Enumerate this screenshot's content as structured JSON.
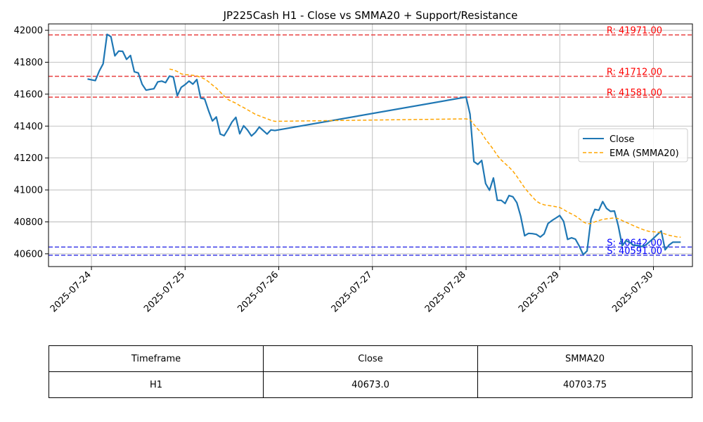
{
  "chart_data": {
    "type": "line",
    "title": "JP225Cash H1 - Close vs SMMA20 + Support/Resistance",
    "xlabel": "",
    "ylabel": "",
    "xlim": [
      "2025-07-23T13:00",
      "2025-07-30T10:00"
    ],
    "ylim": [
      40520,
      42040
    ],
    "x_ticks": [
      "2025-07-24",
      "2025-07-25",
      "2025-07-26",
      "2025-07-27",
      "2025-07-28",
      "2025-07-29",
      "2025-07-30"
    ],
    "y_ticks": [
      40600,
      40800,
      41000,
      41200,
      41400,
      41600,
      41800,
      42000
    ],
    "grid": true,
    "legend_position": "right",
    "series": [
      {
        "name": "Close",
        "color": "#1f77b4",
        "style": "solid",
        "points": [
          [
            "2025-07-23T23:00",
            41695
          ],
          [
            "2025-07-24T01:00",
            41685
          ],
          [
            "2025-07-24T02:00",
            41745
          ],
          [
            "2025-07-24T03:00",
            41790
          ],
          [
            "2025-07-24T04:00",
            41975
          ],
          [
            "2025-07-24T05:00",
            41960
          ],
          [
            "2025-07-24T06:00",
            41840
          ],
          [
            "2025-07-24T07:00",
            41870
          ],
          [
            "2025-07-24T08:00",
            41868
          ],
          [
            "2025-07-24T09:00",
            41818
          ],
          [
            "2025-07-24T10:00",
            41842
          ],
          [
            "2025-07-24T11:00",
            41740
          ],
          [
            "2025-07-24T12:00",
            41733
          ],
          [
            "2025-07-24T13:00",
            41662
          ],
          [
            "2025-07-24T14:00",
            41625
          ],
          [
            "2025-07-24T15:00",
            41630
          ],
          [
            "2025-07-24T16:00",
            41634
          ],
          [
            "2025-07-24T17:00",
            41677
          ],
          [
            "2025-07-24T18:00",
            41682
          ],
          [
            "2025-07-24T19:00",
            41672
          ],
          [
            "2025-07-24T20:00",
            41713
          ],
          [
            "2025-07-24T21:00",
            41707
          ],
          [
            "2025-07-24T22:00",
            41590
          ],
          [
            "2025-07-24T23:00",
            41643
          ],
          [
            "2025-07-25T00:00",
            41660
          ],
          [
            "2025-07-25T01:00",
            41682
          ],
          [
            "2025-07-25T02:00",
            41663
          ],
          [
            "2025-07-25T03:00",
            41692
          ],
          [
            "2025-07-25T04:00",
            41575
          ],
          [
            "2025-07-25T05:00",
            41570
          ],
          [
            "2025-07-25T06:00",
            41497
          ],
          [
            "2025-07-25T07:00",
            41432
          ],
          [
            "2025-07-25T08:00",
            41457
          ],
          [
            "2025-07-25T09:00",
            41350
          ],
          [
            "2025-07-25T10:00",
            41340
          ],
          [
            "2025-07-25T11:00",
            41380
          ],
          [
            "2025-07-25T12:00",
            41425
          ],
          [
            "2025-07-25T13:00",
            41455
          ],
          [
            "2025-07-25T14:00",
            41352
          ],
          [
            "2025-07-25T15:00",
            41402
          ],
          [
            "2025-07-25T16:00",
            41375
          ],
          [
            "2025-07-25T17:00",
            41338
          ],
          [
            "2025-07-25T18:00",
            41360
          ],
          [
            "2025-07-25T19:00",
            41394
          ],
          [
            "2025-07-25T20:00",
            41372
          ],
          [
            "2025-07-25T21:00",
            41350
          ],
          [
            "2025-07-25T22:00",
            41376
          ],
          [
            "2025-07-25T23:00",
            41372
          ],
          [
            "2025-07-28T00:00",
            41582
          ],
          [
            "2025-07-28T01:00",
            41475
          ],
          [
            "2025-07-28T02:00",
            41178
          ],
          [
            "2025-07-28T03:00",
            41160
          ],
          [
            "2025-07-28T04:00",
            41185
          ],
          [
            "2025-07-28T05:00",
            41040
          ],
          [
            "2025-07-28T06:00",
            40998
          ],
          [
            "2025-07-28T07:00",
            41075
          ],
          [
            "2025-07-28T08:00",
            40935
          ],
          [
            "2025-07-28T09:00",
            40935
          ],
          [
            "2025-07-28T10:00",
            40915
          ],
          [
            "2025-07-28T11:00",
            40965
          ],
          [
            "2025-07-28T12:00",
            40957
          ],
          [
            "2025-07-28T13:00",
            40920
          ],
          [
            "2025-07-28T14:00",
            40835
          ],
          [
            "2025-07-28T15:00",
            40713
          ],
          [
            "2025-07-28T16:00",
            40728
          ],
          [
            "2025-07-28T17:00",
            40726
          ],
          [
            "2025-07-28T18:00",
            40722
          ],
          [
            "2025-07-28T19:00",
            40705
          ],
          [
            "2025-07-28T20:00",
            40725
          ],
          [
            "2025-07-28T21:00",
            40790
          ],
          [
            "2025-07-28T22:00",
            40808
          ],
          [
            "2025-07-28T23:00",
            40824
          ],
          [
            "2025-07-29T00:00",
            40840
          ],
          [
            "2025-07-29T01:00",
            40803
          ],
          [
            "2025-07-29T02:00",
            40690
          ],
          [
            "2025-07-29T03:00",
            40700
          ],
          [
            "2025-07-29T04:00",
            40692
          ],
          [
            "2025-07-29T05:00",
            40648
          ],
          [
            "2025-07-29T06:00",
            40595
          ],
          [
            "2025-07-29T07:00",
            40618
          ],
          [
            "2025-07-29T08:00",
            40818
          ],
          [
            "2025-07-29T09:00",
            40878
          ],
          [
            "2025-07-29T10:00",
            40873
          ],
          [
            "2025-07-29T11:00",
            40927
          ],
          [
            "2025-07-29T12:00",
            40884
          ],
          [
            "2025-07-29T13:00",
            40866
          ],
          [
            "2025-07-29T14:00",
            40868
          ],
          [
            "2025-07-29T15:00",
            40775
          ],
          [
            "2025-07-29T16:00",
            40650
          ],
          [
            "2025-07-29T17:00",
            40683
          ],
          [
            "2025-07-29T18:00",
            40670
          ],
          [
            "2025-07-29T19:00",
            40652
          ],
          [
            "2025-07-29T20:00",
            40652
          ],
          [
            "2025-07-29T21:00",
            40645
          ],
          [
            "2025-07-29T22:00",
            40655
          ],
          [
            "2025-07-29T23:00",
            40675
          ],
          [
            "2025-07-30T00:00",
            40697
          ],
          [
            "2025-07-30T01:00",
            40720
          ],
          [
            "2025-07-30T02:00",
            40743
          ],
          [
            "2025-07-30T03:00",
            40625
          ],
          [
            "2025-07-30T04:00",
            40655
          ],
          [
            "2025-07-30T05:00",
            40673
          ],
          [
            "2025-07-30T06:00",
            40673
          ],
          [
            "2025-07-30T07:00",
            40673
          ]
        ]
      },
      {
        "name": "EMA (SMMA20)",
        "color": "#ffa500",
        "style": "dashed",
        "points": [
          [
            "2025-07-24T20:00",
            41757
          ],
          [
            "2025-07-24T21:00",
            41752
          ],
          [
            "2025-07-24T22:00",
            41742
          ],
          [
            "2025-07-24T23:00",
            41727
          ],
          [
            "2025-07-25T00:00",
            41722
          ],
          [
            "2025-07-25T01:00",
            41721
          ],
          [
            "2025-07-25T02:00",
            41718
          ],
          [
            "2025-07-25T03:00",
            41714
          ],
          [
            "2025-07-25T04:00",
            41706
          ],
          [
            "2025-07-25T05:00",
            41695
          ],
          [
            "2025-07-25T06:00",
            41678
          ],
          [
            "2025-07-25T07:00",
            41657
          ],
          [
            "2025-07-25T08:00",
            41638
          ],
          [
            "2025-07-25T09:00",
            41613
          ],
          [
            "2025-07-25T10:00",
            41589
          ],
          [
            "2025-07-25T11:00",
            41566
          ],
          [
            "2025-07-25T12:00",
            41554
          ],
          [
            "2025-07-25T13:00",
            41544
          ],
          [
            "2025-07-25T14:00",
            41528
          ],
          [
            "2025-07-25T15:00",
            41516
          ],
          [
            "2025-07-25T16:00",
            41502
          ],
          [
            "2025-07-25T17:00",
            41488
          ],
          [
            "2025-07-25T18:00",
            41474
          ],
          [
            "2025-07-25T19:00",
            41464
          ],
          [
            "2025-07-25T20:00",
            41455
          ],
          [
            "2025-07-25T21:00",
            41446
          ],
          [
            "2025-07-25T22:00",
            41436
          ],
          [
            "2025-07-25T23:00",
            41430
          ],
          [
            "2025-07-28T00:00",
            41445
          ],
          [
            "2025-07-28T01:00",
            41440
          ],
          [
            "2025-07-28T02:00",
            41411
          ],
          [
            "2025-07-28T03:00",
            41381
          ],
          [
            "2025-07-28T04:00",
            41356
          ],
          [
            "2025-07-28T05:00",
            41317
          ],
          [
            "2025-07-28T06:00",
            41286
          ],
          [
            "2025-07-28T07:00",
            41253
          ],
          [
            "2025-07-28T08:00",
            41216
          ],
          [
            "2025-07-28T09:00",
            41188
          ],
          [
            "2025-07-28T10:00",
            41165
          ],
          [
            "2025-07-28T11:00",
            41143
          ],
          [
            "2025-07-28T12:00",
            41118
          ],
          [
            "2025-07-28T13:00",
            41085
          ],
          [
            "2025-07-28T14:00",
            41049
          ],
          [
            "2025-07-28T15:00",
            41013
          ],
          [
            "2025-07-28T16:00",
            40984
          ],
          [
            "2025-07-28T17:00",
            40956
          ],
          [
            "2025-07-28T18:00",
            40930
          ],
          [
            "2025-07-28T19:00",
            40915
          ],
          [
            "2025-07-28T20:00",
            40907
          ],
          [
            "2025-07-28T21:00",
            40903
          ],
          [
            "2025-07-28T22:00",
            40900
          ],
          [
            "2025-07-28T23:00",
            40895
          ],
          [
            "2025-07-29T00:00",
            40890
          ],
          [
            "2025-07-29T01:00",
            40877
          ],
          [
            "2025-07-29T02:00",
            40862
          ],
          [
            "2025-07-29T03:00",
            40850
          ],
          [
            "2025-07-29T04:00",
            40837
          ],
          [
            "2025-07-29T05:00",
            40820
          ],
          [
            "2025-07-29T06:00",
            40800
          ],
          [
            "2025-07-29T07:00",
            40788
          ],
          [
            "2025-07-29T08:00",
            40790
          ],
          [
            "2025-07-29T09:00",
            40800
          ],
          [
            "2025-07-29T10:00",
            40808
          ],
          [
            "2025-07-29T11:00",
            40815
          ],
          [
            "2025-07-29T12:00",
            40819
          ],
          [
            "2025-07-29T13:00",
            40822
          ],
          [
            "2025-07-29T14:00",
            40825
          ],
          [
            "2025-07-29T15:00",
            40820
          ],
          [
            "2025-07-29T16:00",
            40808
          ],
          [
            "2025-07-29T17:00",
            40797
          ],
          [
            "2025-07-29T18:00",
            40786
          ],
          [
            "2025-07-29T19:00",
            40775
          ],
          [
            "2025-07-29T20:00",
            40765
          ],
          [
            "2025-07-29T21:00",
            40755
          ],
          [
            "2025-07-29T22:00",
            40746
          ],
          [
            "2025-07-29T23:00",
            40740
          ],
          [
            "2025-07-30T00:00",
            40738
          ],
          [
            "2025-07-30T01:00",
            40736
          ],
          [
            "2025-07-30T02:00",
            40732
          ],
          [
            "2025-07-30T03:00",
            40724
          ],
          [
            "2025-07-30T04:00",
            40716
          ],
          [
            "2025-07-30T05:00",
            40711
          ],
          [
            "2025-07-30T06:00",
            40706
          ],
          [
            "2025-07-30T07:00",
            40704
          ]
        ]
      }
    ],
    "levels": [
      {
        "label": "R: 41971.00",
        "value": 41971,
        "color": "#ff0000",
        "line_color": "#e84040"
      },
      {
        "label": "R: 41712.00",
        "value": 41712,
        "color": "#ff0000",
        "line_color": "#e84040"
      },
      {
        "label": "R: 41581.00",
        "value": 41581,
        "color": "#ff0000",
        "line_color": "#e84040"
      },
      {
        "label": "S: 40642.00",
        "value": 40642,
        "color": "#0000ff",
        "line_color": "#4040e8"
      },
      {
        "label": "S: 40591.00",
        "value": 40591,
        "color": "#0000ff",
        "line_color": "#4040e8"
      }
    ]
  },
  "table": {
    "headers": [
      "Timeframe",
      "Close",
      "SMMA20"
    ],
    "rows": [
      [
        "H1",
        "40673.0",
        "40703.75"
      ]
    ]
  }
}
